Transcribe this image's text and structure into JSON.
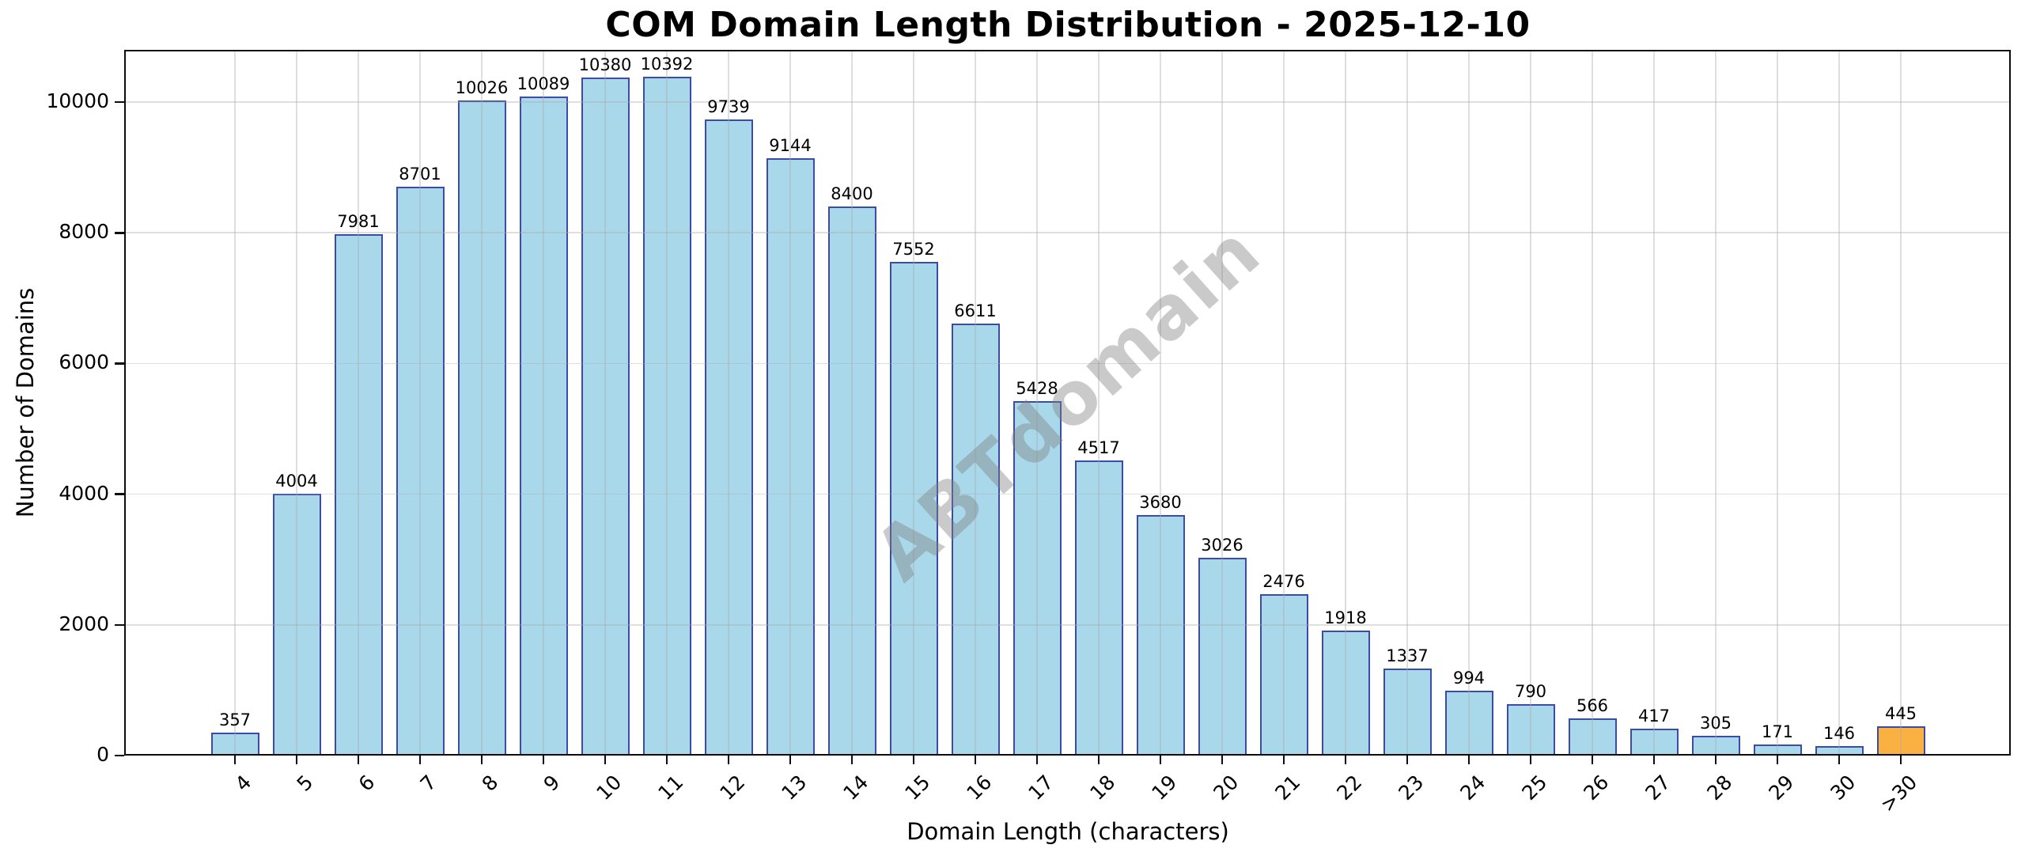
{
  "chart_data": {
    "type": "bar",
    "title": "COM Domain Length Distribution - 2025-12-10",
    "xlabel": "Domain Length (characters)",
    "ylabel": "Number of Domains",
    "categories": [
      "4",
      "5",
      "6",
      "7",
      "8",
      "9",
      "10",
      "11",
      "12",
      "13",
      "14",
      "15",
      "16",
      "17",
      "18",
      "19",
      "20",
      "21",
      "22",
      "23",
      "24",
      "25",
      "26",
      "27",
      "28",
      "29",
      "30",
      ">30"
    ],
    "values": [
      357,
      4004,
      7981,
      8701,
      10026,
      10089,
      10380,
      10392,
      9739,
      9144,
      8400,
      7552,
      6611,
      5428,
      4517,
      3680,
      3026,
      2476,
      1918,
      1337,
      994,
      790,
      566,
      417,
      305,
      171,
      146,
      445
    ],
    "ylim": [
      0,
      10800
    ],
    "yticks": [
      0,
      2000,
      4000,
      6000,
      8000,
      10000
    ],
    "grid": true,
    "legend": "none",
    "bar_color": "#A8D8EA",
    "bar_edge_color": "#3C4BA6",
    "highlight_index": 27,
    "highlight_color": "#FBB042",
    "value_labels_shown": true,
    "watermark": "ABTdomain"
  }
}
